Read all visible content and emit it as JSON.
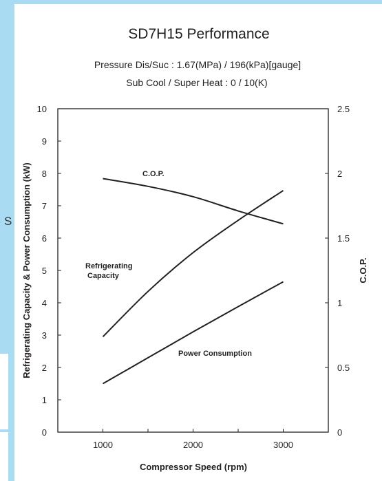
{
  "page": {
    "side_letter": "S",
    "background_color": "#a9dcf3"
  },
  "chart_data": {
    "type": "line",
    "title": "SD7H15 Performance",
    "subtitle_lines": [
      "Pressure Dis/Suc : 1.67(MPa) / 196(kPa)[gauge]",
      "Sub Cool / Super Heat : 0 / 10(K)"
    ],
    "xlabel": "Compressor Speed (rpm)",
    "ylabel_left": "Refrigerating Capacity & Power Consumption (kW)",
    "ylabel_right": "C.O.P.",
    "xlim": [
      500,
      3500
    ],
    "ylim_left": [
      0,
      10
    ],
    "ylim_right": [
      0,
      2.5
    ],
    "x_ticks": [
      1000,
      2000,
      3000
    ],
    "x_tick_labels": [
      "1000",
      "2000",
      "3000"
    ],
    "y_left_ticks": [
      0,
      1,
      2,
      3,
      4,
      5,
      6,
      7,
      8,
      9,
      10
    ],
    "y_left_tick_labels": [
      "0",
      "1",
      "2",
      "3",
      "4",
      "5",
      "6",
      "7",
      "8",
      "9",
      "10"
    ],
    "y_right_ticks": [
      0,
      0.5,
      1,
      1.5,
      2,
      2.5
    ],
    "y_right_tick_labels": [
      "0",
      "0.5",
      "1",
      "1.5",
      "2",
      "2.5"
    ],
    "grid": false,
    "series": [
      {
        "name": "Refrigerating Capacity",
        "label_lines": [
          "Refrigerating",
          "Capacity"
        ],
        "axis": "left",
        "x": [
          1000,
          1500,
          2000,
          2500,
          3000
        ],
        "values": [
          2.95,
          4.35,
          5.55,
          6.55,
          7.47
        ]
      },
      {
        "name": "Power Consumption",
        "label_lines": [
          "Power Consumption"
        ],
        "axis": "left",
        "x": [
          1000,
          1500,
          2000,
          2500,
          3000
        ],
        "values": [
          1.5,
          2.3,
          3.1,
          3.88,
          4.65
        ]
      },
      {
        "name": "C.O.P.",
        "label_lines": [
          "C.O.P."
        ],
        "axis": "right",
        "x": [
          1000,
          1500,
          2000,
          2500,
          3000
        ],
        "values": [
          1.96,
          1.9,
          1.82,
          1.71,
          1.61
        ]
      }
    ],
    "line_color": "#231f20"
  }
}
